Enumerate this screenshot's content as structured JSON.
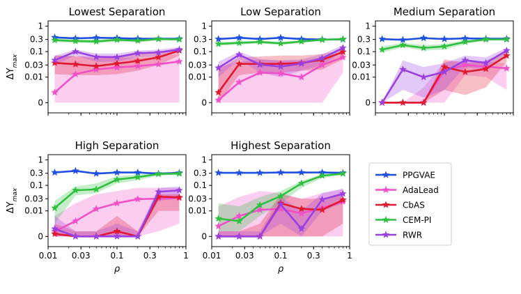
{
  "chart_data": {
    "type": "line",
    "xscale": "log",
    "yscale": "symlog",
    "x": [
      0.0125,
      0.025,
      0.05,
      0.1,
      0.2,
      0.4,
      0.8
    ],
    "xticks": [
      {
        "v": 0.01,
        "label": "0.01"
      },
      {
        "v": 0.03,
        "label": "0.03"
      },
      {
        "v": 0.1,
        "label": "0.1"
      },
      {
        "v": 0.3,
        "label": "0.3"
      },
      {
        "v": 1,
        "label": "1"
      }
    ],
    "yticks": [
      {
        "v": 0,
        "label": "0"
      },
      {
        "v": 0.01,
        "label": "0.01"
      },
      {
        "v": 0.03,
        "label": "0.03"
      },
      {
        "v": 0.1,
        "label": "0.1"
      },
      {
        "v": 0.3,
        "label": "0.3"
      },
      {
        "v": 1,
        "label": "1"
      }
    ],
    "xlim": [
      0.01,
      1.0
    ],
    "ylim": [
      -0.004,
      1.6
    ],
    "xlabel": "ρ",
    "ylabel_base": "ΔY",
    "ylabel_sub": "max",
    "series_styles": [
      {
        "name": "PPGVAE",
        "color": "#1f4fe0"
      },
      {
        "name": "AdaLead",
        "color": "#f04fc8"
      },
      {
        "name": "CbAS",
        "color": "#e01830"
      },
      {
        "name": "CEM-PI",
        "color": "#30c040"
      },
      {
        "name": "RWR",
        "color": "#9a40e0"
      }
    ],
    "panels": [
      {
        "title": "Lowest Separation",
        "series": [
          {
            "name": "PPGVAE",
            "values": [
              0.36,
              0.33,
              0.35,
              0.34,
              0.32,
              0.32,
              0.32
            ],
            "lower": [
              0.34,
              0.31,
              0.33,
              0.32,
              0.3,
              0.3,
              0.3
            ],
            "upper": [
              0.38,
              0.35,
              0.37,
              0.36,
              0.34,
              0.34,
              0.34
            ]
          },
          {
            "name": "AdaLead",
            "values": [
              0.004,
              0.013,
              0.02,
              0.024,
              0.027,
              0.032,
              0.041
            ],
            "lower": [
              0.0,
              0.0,
              0.0,
              0.0,
              0.0,
              0.0,
              0.0
            ],
            "upper": [
              0.07,
              0.065,
              0.07,
              0.06,
              0.055,
              0.065,
              0.08
            ]
          },
          {
            "name": "CbAS",
            "values": [
              0.036,
              0.032,
              0.027,
              0.034,
              0.043,
              0.06,
              0.11
            ],
            "lower": [
              0.013,
              0.012,
              0.012,
              0.013,
              0.018,
              0.03,
              0.07
            ],
            "upper": [
              0.07,
              0.068,
              0.055,
              0.06,
              0.08,
              0.1,
              0.14
            ]
          },
          {
            "name": "CEM-PI",
            "values": [
              0.28,
              0.26,
              0.25,
              0.29,
              0.27,
              0.31,
              0.3
            ],
            "lower": [
              0.24,
              0.22,
              0.21,
              0.25,
              0.23,
              0.28,
              0.27
            ],
            "upper": [
              0.33,
              0.3,
              0.3,
              0.33,
              0.31,
              0.34,
              0.33
            ]
          },
          {
            "name": "RWR",
            "values": [
              0.046,
              0.1,
              0.062,
              0.061,
              0.087,
              0.093,
              0.12
            ],
            "lower": [
              0.03,
              0.07,
              0.04,
              0.04,
              0.06,
              0.065,
              0.09
            ],
            "upper": [
              0.07,
              0.12,
              0.085,
              0.085,
              0.11,
              0.12,
              0.15
            ]
          }
        ]
      },
      {
        "title": "Low Separation",
        "series": [
          {
            "name": "PPGVAE",
            "values": [
              0.31,
              0.35,
              0.31,
              0.35,
              0.31,
              0.3,
              0.3
            ],
            "lower": [
              0.29,
              0.33,
              0.29,
              0.33,
              0.29,
              0.28,
              0.28
            ],
            "upper": [
              0.33,
              0.37,
              0.33,
              0.37,
              0.33,
              0.32,
              0.32
            ]
          },
          {
            "name": "AdaLead",
            "values": [
              0.001,
              0.008,
              0.015,
              0.014,
              0.01,
              0.03,
              0.06
            ],
            "lower": [
              0.0,
              0.0,
              0.0,
              0.0,
              0.0,
              0.0,
              0.015
            ],
            "upper": [
              0.025,
              0.04,
              0.05,
              0.045,
              0.045,
              0.06,
              0.09
            ]
          },
          {
            "name": "CbAS",
            "values": [
              0.004,
              0.033,
              0.033,
              0.033,
              0.036,
              0.048,
              0.097
            ],
            "lower": [
              0.0,
              0.012,
              0.015,
              0.015,
              0.018,
              0.02,
              0.05
            ],
            "upper": [
              0.02,
              0.06,
              0.065,
              0.07,
              0.07,
              0.08,
              0.12
            ]
          },
          {
            "name": "CEM-PI",
            "values": [
              0.2,
              0.22,
              0.24,
              0.21,
              0.25,
              0.29,
              0.31
            ],
            "lower": [
              0.17,
              0.19,
              0.21,
              0.18,
              0.22,
              0.27,
              0.29
            ],
            "upper": [
              0.24,
              0.25,
              0.27,
              0.24,
              0.28,
              0.32,
              0.33
            ]
          },
          {
            "name": "RWR",
            "values": [
              0.023,
              0.075,
              0.031,
              0.026,
              0.034,
              0.055,
              0.14
            ],
            "lower": [
              0.01,
              0.05,
              0.015,
              0.01,
              0.018,
              0.03,
              0.1
            ],
            "upper": [
              0.04,
              0.1,
              0.05,
              0.045,
              0.05,
              0.08,
              0.18
            ]
          }
        ]
      },
      {
        "title": "Medium Separation",
        "series": [
          {
            "name": "PPGVAE",
            "values": [
              0.31,
              0.29,
              0.34,
              0.31,
              0.33,
              0.32,
              0.32
            ],
            "lower": [
              0.29,
              0.27,
              0.32,
              0.29,
              0.31,
              0.3,
              0.3
            ],
            "upper": [
              0.33,
              0.31,
              0.36,
              0.33,
              0.35,
              0.34,
              0.34
            ]
          },
          {
            "name": "AdaLead",
            "values": [
              0.0,
              0.0,
              0.0,
              0.018,
              0.03,
              0.026,
              0.022
            ],
            "lower": [
              0.0,
              0.0,
              0.0,
              0.0,
              0.012,
              0.01,
              0.005
            ],
            "upper": [
              0.0,
              0.0,
              0.006,
              0.04,
              0.045,
              0.04,
              0.035
            ]
          },
          {
            "name": "CbAS",
            "values": [
              0.0,
              0.0,
              0.0,
              0.025,
              0.016,
              0.021,
              0.069
            ],
            "lower": [
              0.0,
              0.0,
              0.0,
              0.005,
              0.003,
              0.006,
              0.04
            ],
            "upper": [
              0.0,
              0.0,
              0.0,
              0.05,
              0.035,
              0.045,
              0.1
            ]
          },
          {
            "name": "CEM-PI",
            "values": [
              0.12,
              0.18,
              0.14,
              0.16,
              0.24,
              0.3,
              0.3
            ],
            "lower": [
              0.09,
              0.15,
              0.11,
              0.12,
              0.2,
              0.27,
              0.28
            ],
            "upper": [
              0.16,
              0.22,
              0.18,
              0.2,
              0.28,
              0.33,
              0.33
            ]
          },
          {
            "name": "RWR",
            "values": [
              0.0,
              0.02,
              0.01,
              0.016,
              0.046,
              0.036,
              0.11
            ],
            "lower": [
              0.0,
              0.005,
              0.002,
              0.005,
              0.025,
              0.02,
              0.08
            ],
            "upper": [
              0.0,
              0.045,
              0.025,
              0.035,
              0.07,
              0.06,
              0.14
            ]
          }
        ]
      },
      {
        "title": "High Separation",
        "series": [
          {
            "name": "PPGVAE",
            "values": [
              0.32,
              0.37,
              0.29,
              0.32,
              0.32,
              0.29,
              0.31
            ],
            "lower": [
              0.3,
              0.35,
              0.27,
              0.3,
              0.3,
              0.27,
              0.29
            ],
            "upper": [
              0.34,
              0.39,
              0.31,
              0.34,
              0.34,
              0.31,
              0.33
            ]
          },
          {
            "name": "AdaLead",
            "values": [
              0.002,
              0.006,
              0.012,
              0.02,
              0.029,
              0.03,
              0.032
            ],
            "lower": [
              0.0,
              0.0,
              0.0,
              0.0,
              0.0,
              0.002,
              0.005
            ],
            "upper": [
              0.008,
              0.02,
              0.045,
              0.06,
              0.08,
              0.08,
              0.08
            ]
          },
          {
            "name": "CbAS",
            "values": [
              0.001,
              0.0,
              0.0,
              0.002,
              0.0,
              0.036,
              0.034
            ],
            "lower": [
              0.0,
              0.0,
              0.0,
              0.0,
              0.0,
              0.01,
              0.01
            ],
            "upper": [
              0.005,
              0.002,
              0.002,
              0.008,
              0.002,
              0.045,
              0.045
            ]
          },
          {
            "name": "CEM-PI",
            "values": [
              0.013,
              0.064,
              0.07,
              0.17,
              0.21,
              0.28,
              0.29
            ],
            "lower": [
              0.005,
              0.04,
              0.05,
              0.12,
              0.16,
              0.24,
              0.26
            ],
            "upper": [
              0.025,
              0.09,
              0.12,
              0.23,
              0.26,
              0.32,
              0.32
            ]
          },
          {
            "name": "RWR",
            "values": [
              0.003,
              0.0,
              0.0,
              0.0,
              0.0,
              0.056,
              0.064
            ],
            "lower": [
              0.0,
              0.0,
              0.0,
              0.0,
              0.0,
              0.025,
              0.03
            ],
            "upper": [
              0.008,
              0.002,
              0.002,
              0.005,
              0.002,
              0.08,
              0.09
            ]
          }
        ]
      },
      {
        "title": "Highest Separation",
        "series": [
          {
            "name": "PPGVAE",
            "values": [
              0.31,
              0.31,
              0.31,
              0.32,
              0.32,
              0.32,
              0.31
            ],
            "lower": [
              0.29,
              0.29,
              0.29,
              0.3,
              0.3,
              0.3,
              0.29
            ],
            "upper": [
              0.33,
              0.33,
              0.33,
              0.34,
              0.34,
              0.34,
              0.33
            ]
          },
          {
            "name": "AdaLead",
            "values": [
              0.004,
              0.008,
              0.011,
              0.012,
              0.009,
              0.013,
              0.023
            ],
            "lower": [
              0.0,
              0.0,
              0.0,
              0.0,
              0.0,
              0.0,
              0.0
            ],
            "upper": [
              0.015,
              0.035,
              0.06,
              0.05,
              0.03,
              0.05,
              0.07
            ]
          },
          {
            "name": "CbAS",
            "values": [
              0.0,
              0.0,
              0.0,
              0.02,
              0.012,
              0.011,
              0.027
            ],
            "lower": [
              0.0,
              0.0,
              0.0,
              0.0,
              0.0,
              0.0,
              0.005
            ],
            "upper": [
              0.002,
              0.002,
              0.005,
              0.045,
              0.03,
              0.03,
              0.05
            ]
          },
          {
            "name": "CEM-PI",
            "values": [
              0.007,
              0.006,
              0.017,
              0.038,
              0.12,
              0.24,
              0.29
            ],
            "lower": [
              0.002,
              0.002,
              0.008,
              0.02,
              0.08,
              0.2,
              0.26
            ],
            "upper": [
              0.02,
              0.015,
              0.035,
              0.06,
              0.15,
              0.28,
              0.32
            ]
          },
          {
            "name": "RWR",
            "values": [
              0.0,
              0.0,
              0.0,
              0.018,
              0.003,
              0.028,
              0.047
            ],
            "lower": [
              0.0,
              0.0,
              0.0,
              0.005,
              0.0,
              0.01,
              0.02
            ],
            "upper": [
              0.002,
              0.002,
              0.002,
              0.035,
              0.01,
              0.05,
              0.075
            ]
          }
        ]
      }
    ],
    "legend": {
      "position": "right",
      "entries": [
        "PPGVAE",
        "AdaLead",
        "CbAS",
        "CEM-PI",
        "RWR"
      ]
    }
  }
}
